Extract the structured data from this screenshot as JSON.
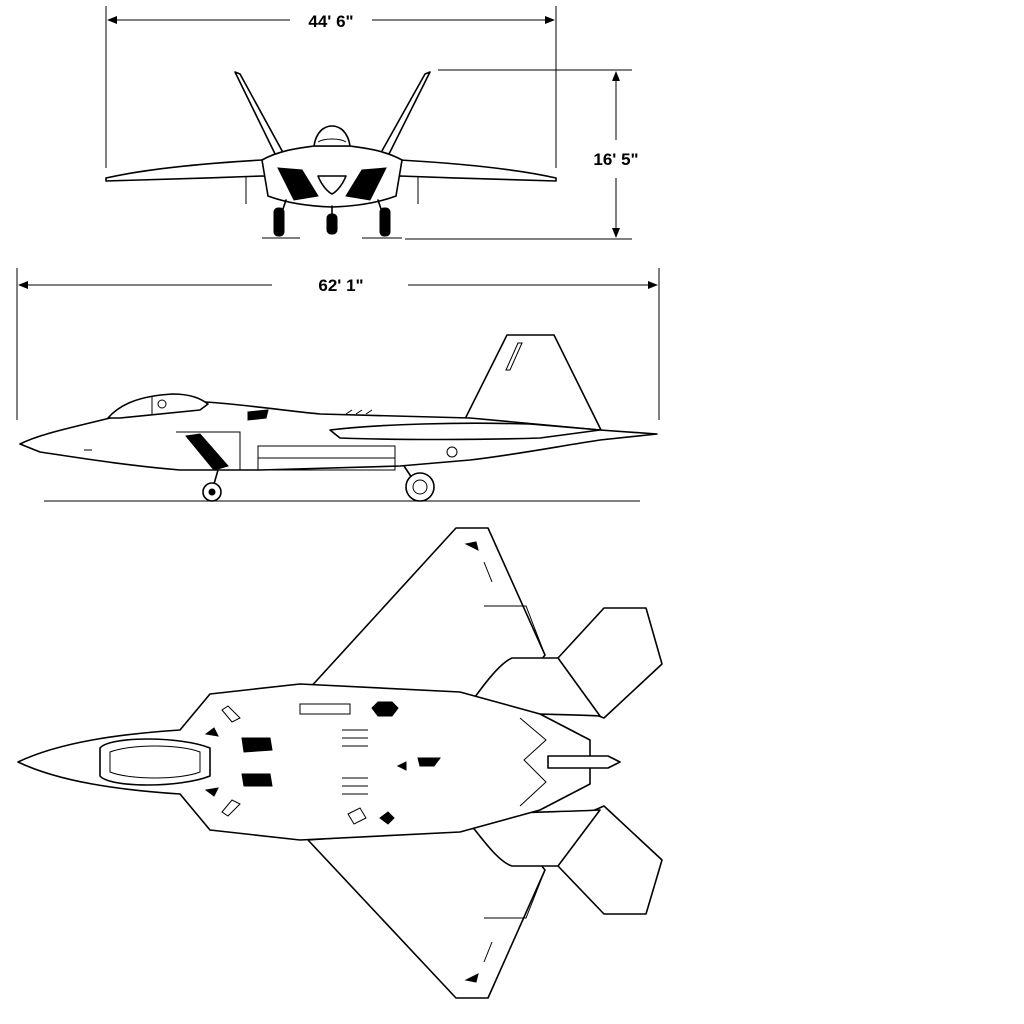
{
  "dimensions": {
    "wingspan": "44' 6\"",
    "height": "16' 5\"",
    "length": "62' 1\""
  },
  "views": [
    "front-view",
    "side-view",
    "top-view"
  ],
  "colors": {
    "line": "#000000",
    "background": "#ffffff"
  }
}
